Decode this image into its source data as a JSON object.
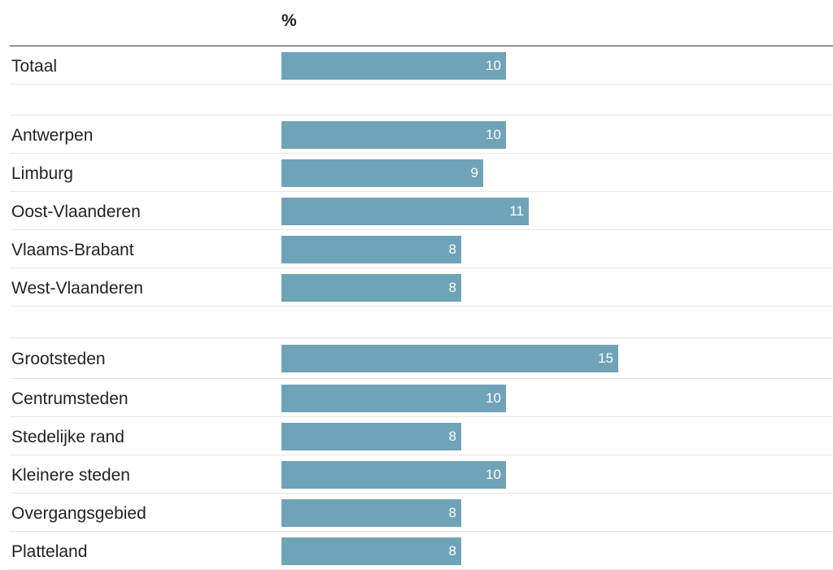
{
  "chart_data": {
    "type": "bar",
    "orientation": "horizontal",
    "unit_label": "%",
    "color": "#6fa3b8",
    "xlim": [
      0,
      20
    ],
    "grid": false,
    "data_labels": true,
    "groups": [
      {
        "categories": [
          "Totaal"
        ],
        "values": [
          10
        ]
      },
      {
        "categories": [
          "Antwerpen",
          "Limburg",
          "Oost-Vlaanderen",
          "Vlaams-Brabant",
          "West-Vlaanderen"
        ],
        "values": [
          10,
          9,
          11,
          8,
          8
        ]
      },
      {
        "categories": [
          "Grootsteden",
          "Centrumsteden",
          "Stedelijke rand",
          "Kleinere steden",
          "Overgangsgebied",
          "Platteland"
        ],
        "values": [
          15,
          10,
          8,
          10,
          8,
          8
        ]
      }
    ]
  }
}
